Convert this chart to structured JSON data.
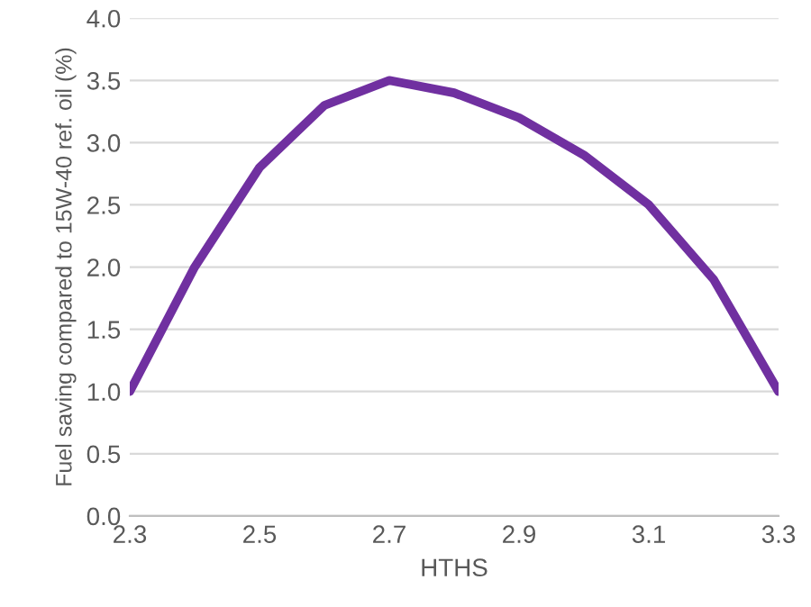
{
  "chart_data": {
    "type": "line",
    "xlabel": "HTHS",
    "ylabel": "Fuel saving compared to 15W-40 ref. oil (%)",
    "x": [
      2.3,
      2.4,
      2.5,
      2.6,
      2.7,
      2.8,
      2.9,
      3.0,
      3.1,
      3.2,
      3.3
    ],
    "series": [
      {
        "color": "#7030a0",
        "values": [
          1.0,
          2.0,
          2.8,
          3.3,
          3.5,
          3.4,
          3.2,
          2.9,
          2.5,
          1.9,
          1.0
        ]
      }
    ],
    "xlim": [
      2.3,
      3.3
    ],
    "xticks": [
      2.3,
      2.5,
      2.7,
      2.9,
      3.1,
      3.3
    ],
    "ylim": [
      0,
      4
    ],
    "yticks": [
      {
        "value": 0,
        "label": "0.0"
      },
      {
        "value": 0.5,
        "label": "0.5"
      },
      {
        "value": 1,
        "label": "1.0"
      },
      {
        "value": 1.5,
        "label": "1.5"
      },
      {
        "value": 2,
        "label": "2.0"
      },
      {
        "value": 2.5,
        "label": "2.5"
      },
      {
        "value": 3,
        "label": "3.0"
      },
      {
        "value": 3.5,
        "label": "3.5"
      },
      {
        "value": 4,
        "label": "4.0"
      }
    ],
    "grid": "y",
    "marker": "none",
    "line_style": "solid"
  }
}
